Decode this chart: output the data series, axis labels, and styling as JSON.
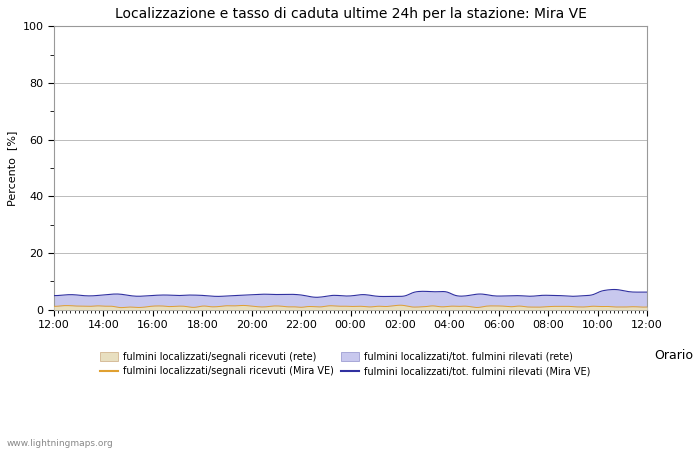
{
  "title": "Localizzazione e tasso di caduta ultime 24h per la stazione: Mira VE",
  "ylabel": "Percento  [%]",
  "xlabel_right": "Orario",
  "watermark": "www.lightningmaps.org",
  "ylim": [
    0,
    100
  ],
  "yticks_major": [
    0,
    20,
    40,
    60,
    80,
    100
  ],
  "yticks_minor": [
    10,
    30,
    50,
    70,
    90
  ],
  "x_labels": [
    "12:00",
    "14:00",
    "16:00",
    "18:00",
    "20:00",
    "22:00",
    "00:00",
    "02:00",
    "04:00",
    "06:00",
    "08:00",
    "10:00",
    "12:00"
  ],
  "bg_color": "#ffffff",
  "plot_bg_color": "#ffffff",
  "grid_color": "#bbbbbb",
  "fill_rete_color": "#e8dfc0",
  "fill_rete_alpha": 1.0,
  "fill_mira_color": "#c8c8ee",
  "fill_mira_alpha": 1.0,
  "line_rete_color": "#e0a030",
  "line_mira_color": "#3030a0",
  "legend_labels": [
    "fulmini localizzati/segnali ricevuti (rete)",
    "fulmini localizzati/segnali ricevuti (Mira VE)",
    "fulmini localizzati/tot. fulmini rilevati (rete)",
    "fulmini localizzati/tot. fulmini rilevati (Mira VE)"
  ],
  "n_points": 289,
  "figsize": [
    7.0,
    4.5
  ],
  "dpi": 100,
  "title_fontsize": 10,
  "axis_fontsize": 8,
  "legend_fontsize": 7,
  "ylabel_fontsize": 8
}
